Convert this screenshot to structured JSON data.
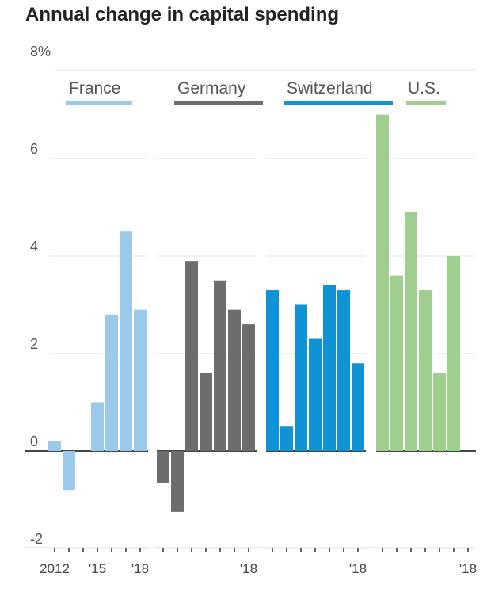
{
  "chart_data": {
    "type": "bar",
    "title": "Annual change in capital spending",
    "ylim": [
      -2,
      8
    ],
    "yticks": [
      {
        "value": 8,
        "label": "8%"
      },
      {
        "value": 6,
        "label": "6"
      },
      {
        "value": 4,
        "label": "4"
      },
      {
        "value": 2,
        "label": "2"
      },
      {
        "value": 0,
        "label": "0"
      },
      {
        "value": -2,
        "label": "-2"
      }
    ],
    "years": [
      2012,
      2013,
      2014,
      2015,
      2016,
      2017,
      2018
    ],
    "grid": true,
    "series": [
      {
        "name": "France",
        "color": "#9bc9ea",
        "values": [
          0.2,
          -0.8,
          0,
          1.0,
          2.8,
          4.5,
          2.9
        ],
        "xlabels": [
          {
            "year": 2012,
            "label": "2012"
          },
          {
            "year": 2015,
            "label": "'15"
          },
          {
            "year": 2018,
            "label": "'18"
          }
        ]
      },
      {
        "name": "Germany",
        "color": "#6d6d6d",
        "values": [
          -0.65,
          -1.25,
          3.9,
          1.6,
          3.5,
          2.9,
          2.6
        ],
        "xlabels": [
          {
            "year": 2018,
            "label": "'18"
          }
        ]
      },
      {
        "name": "Switzerland",
        "color": "#0f92d6",
        "values": [
          3.3,
          0.5,
          3.0,
          2.3,
          3.4,
          3.3,
          1.8
        ],
        "xlabels": [
          {
            "year": 2018,
            "label": "'18"
          }
        ]
      },
      {
        "name": "U.S.",
        "color": "#9fce8f",
        "values": [
          6.9,
          3.6,
          4.9,
          3.3,
          1.6,
          4.0,
          0
        ],
        "xlabels": [
          {
            "year": 2018,
            "label": "'18"
          }
        ]
      }
    ]
  }
}
